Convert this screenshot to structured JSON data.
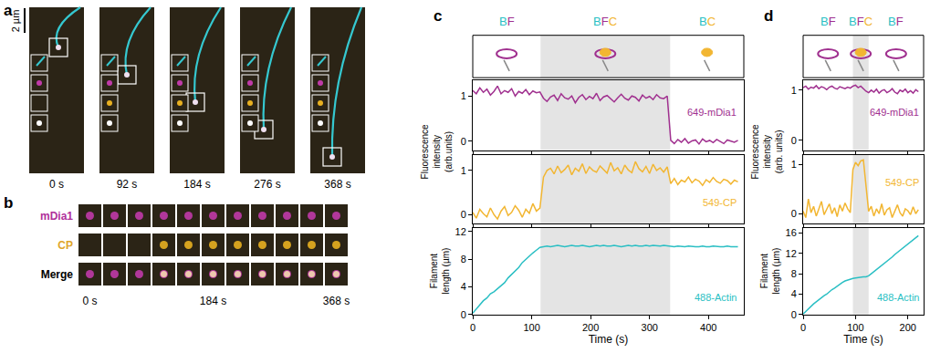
{
  "panel_a": {
    "label": "a",
    "scale_bar": "2 µm",
    "frames": [
      "0 s",
      "92 s",
      "184 s",
      "276 s",
      "368 s"
    ]
  },
  "panel_b": {
    "label": "b",
    "rows": [
      {
        "name": "mDia1",
        "color": "#b0309a"
      },
      {
        "name": "CP",
        "color": "#e0a52a"
      },
      {
        "name": "Merge",
        "color": "#000000"
      }
    ],
    "frames": 11,
    "time_labels": [
      {
        "frame": 0,
        "label": "0 s"
      },
      {
        "frame": 5,
        "label": "184 s"
      },
      {
        "frame": 10,
        "label": "368 s"
      }
    ]
  },
  "chart_data": [
    {
      "label": "c",
      "type": "line",
      "x_label": "Time (s)",
      "y_label": [
        "Fluorescence",
        "intensity",
        "(arb.units)"
      ],
      "xlim": [
        0,
        460
      ],
      "xticks": [
        0,
        100,
        200,
        300,
        400
      ],
      "state_colors": {
        "B": "#2bbfc4",
        "F": "#a0308f",
        "C": "#f2b632"
      },
      "states": [
        {
          "label": "BF",
          "start": 0,
          "end": 115
        },
        {
          "label": "BFC",
          "start": 115,
          "end": 335
        },
        {
          "label": "BC",
          "start": 335,
          "end": 460
        }
      ],
      "highlight": [
        115,
        335
      ],
      "x": [
        0,
        6,
        12,
        18,
        24,
        30,
        36,
        42,
        48,
        54,
        60,
        66,
        72,
        78,
        84,
        90,
        96,
        102,
        108,
        114,
        120,
        126,
        132,
        138,
        144,
        150,
        156,
        162,
        168,
        174,
        180,
        186,
        192,
        198,
        204,
        210,
        216,
        222,
        228,
        234,
        240,
        246,
        252,
        258,
        264,
        270,
        276,
        282,
        288,
        294,
        300,
        306,
        312,
        318,
        324,
        330,
        336,
        342,
        348,
        354,
        360,
        366,
        372,
        378,
        384,
        390,
        396,
        402,
        408,
        414,
        420,
        426,
        432,
        438,
        444,
        450
      ],
      "series": [
        {
          "name": "649-mDia1",
          "color": "#a0308f",
          "ylim": [
            -0.2,
            1.35
          ],
          "yticks": [
            0,
            1
          ],
          "tick_labels": "y",
          "values": [
            1.12,
            1.05,
            1.18,
            1.08,
            1.15,
            1.02,
            1.1,
            1.22,
            1.05,
            1.12,
            1.08,
            1.16,
            1.0,
            1.1,
            1.06,
            1.14,
            1.03,
            1.11,
            1.07,
            1.09,
            0.95,
            0.88,
            0.98,
            1.02,
            0.9,
            1.05,
            0.96,
            0.93,
            1.0,
            0.85,
            0.97,
            1.03,
            0.92,
            0.99,
            0.94,
            1.06,
            0.9,
            0.98,
            1.01,
            0.93,
            0.87,
            0.96,
            1.04,
            0.95,
            0.91,
            1.0,
            0.97,
            0.89,
            1.02,
            0.95,
            0.99,
            0.92,
            1.03,
            0.96,
            0.94,
            1.0,
            0.02,
            -0.05,
            0.04,
            -0.02,
            0.06,
            -0.04,
            0.01,
            0.03,
            -0.06,
            0.05,
            -0.01,
            0.02,
            -0.03,
            0.04,
            0.0,
            -0.05,
            0.03,
            0.01,
            -0.02,
            0.02
          ]
        },
        {
          "name": "549-CP",
          "color": "#f2b632",
          "ylim": [
            -0.2,
            1.35
          ],
          "yticks": [
            0,
            1
          ],
          "tick_labels": "y",
          "values": [
            0.05,
            -0.08,
            0.12,
            0.02,
            -0.05,
            0.15,
            0.0,
            -0.1,
            0.08,
            0.18,
            -0.02,
            0.05,
            0.2,
            0.1,
            -0.06,
            0.12,
            0.03,
            0.25,
            0.08,
            0.15,
            0.85,
            1.0,
            1.05,
            0.92,
            1.1,
            0.95,
            1.02,
            1.12,
            0.9,
            1.05,
            0.98,
            1.15,
            0.93,
            1.08,
            1.0,
            0.96,
            1.1,
            1.03,
            0.94,
            1.18,
            0.99,
            1.06,
            0.92,
            1.12,
            1.01,
            0.95,
            1.2,
            1.04,
            0.97,
            1.09,
            0.93,
            1.14,
            1.0,
            1.06,
            0.96,
            1.08,
            0.7,
            0.82,
            0.68,
            0.78,
            0.74,
            0.85,
            0.72,
            0.8,
            0.76,
            0.66,
            0.79,
            0.73,
            0.84,
            0.75,
            0.71,
            0.8,
            0.77,
            0.69,
            0.78,
            0.74
          ]
        },
        {
          "name": "488-Actin",
          "color": "#2bbfc4",
          "ylim": [
            0,
            12.5
          ],
          "yticks": [
            0,
            4,
            8,
            12
          ],
          "y_label": [
            "Filament",
            "length (µm)"
          ],
          "values": [
            0.2,
            0.8,
            1.5,
            2.0,
            2.4,
            3.0,
            3.3,
            3.7,
            4.2,
            4.6,
            5.3,
            5.8,
            6.2,
            6.8,
            7.5,
            8.0,
            8.4,
            8.9,
            9.3,
            9.7,
            9.8,
            9.9,
            9.8,
            9.9,
            10.0,
            9.9,
            9.8,
            9.9,
            10.0,
            9.9,
            9.9,
            10.0,
            9.9,
            9.8,
            9.9,
            10.0,
            9.9,
            10.0,
            9.9,
            9.9,
            10.0,
            9.9,
            9.8,
            9.9,
            10.0,
            9.9,
            10.0,
            9.9,
            9.9,
            10.0,
            9.9,
            10.0,
            9.9,
            9.9,
            10.0,
            9.9,
            9.8,
            9.8,
            9.9,
            9.8,
            9.8,
            9.9,
            9.8,
            9.8,
            9.8,
            9.9,
            9.8,
            9.8,
            9.9,
            9.8,
            9.8,
            9.8,
            9.9,
            9.8,
            9.8,
            9.8
          ]
        }
      ]
    },
    {
      "label": "d",
      "type": "line",
      "x_label": "Time (s)",
      "y_label": [
        "Fluorescence",
        "intensity",
        "(arb. units)"
      ],
      "xlim": [
        0,
        230
      ],
      "xticks": [
        0,
        100,
        200
      ],
      "state_colors": {
        "B": "#2bbfc4",
        "F": "#a0308f",
        "C": "#f2b632"
      },
      "states": [
        {
          "label": "BF",
          "start": 0,
          "end": 95
        },
        {
          "label": "BFC",
          "start": 95,
          "end": 125
        },
        {
          "label": "BF",
          "start": 125,
          "end": 230
        }
      ],
      "highlight": [
        95,
        125
      ],
      "x": [
        0,
        5,
        10,
        15,
        20,
        25,
        30,
        35,
        40,
        45,
        50,
        55,
        60,
        65,
        70,
        75,
        80,
        85,
        90,
        95,
        100,
        105,
        110,
        115,
        120,
        125,
        130,
        135,
        140,
        145,
        150,
        155,
        160,
        165,
        170,
        175,
        180,
        185,
        190,
        195,
        200,
        205,
        210,
        215,
        220
      ],
      "series": [
        {
          "name": "649-mDia1",
          "color": "#a0308f",
          "ylim": [
            -0.2,
            1.2
          ],
          "yticks": [
            0,
            1
          ],
          "tick_labels": "y",
          "values": [
            1.05,
            1.08,
            1.02,
            1.06,
            1.04,
            1.09,
            1.03,
            1.07,
            1.05,
            1.01,
            1.06,
            1.08,
            1.04,
            1.02,
            1.07,
            1.05,
            1.03,
            1.06,
            1.04,
            1.08,
            1.1,
            1.05,
            1.08,
            1.03,
            0.98,
            0.95,
            1.0,
            0.96,
            1.02,
            0.94,
            0.99,
            1.01,
            0.95,
            0.98,
            1.03,
            0.96,
            0.93,
            1.0,
            0.97,
            1.02,
            0.95,
            0.99,
            0.94,
            1.01,
            0.97
          ]
        },
        {
          "name": "549-CP",
          "color": "#f2b632",
          "ylim": [
            -0.2,
            1.2
          ],
          "yticks": [
            0,
            1
          ],
          "tick_labels": "y",
          "values": [
            0.05,
            -0.08,
            0.3,
            0.02,
            0.15,
            -0.05,
            0.1,
            0.25,
            -0.02,
            0.08,
            0.2,
            0.0,
            0.12,
            -0.06,
            0.18,
            0.05,
            0.22,
            0.1,
            0.02,
            0.9,
            1.05,
            0.98,
            1.08,
            1.1,
            0.5,
            0.05,
            0.15,
            -0.05,
            0.1,
            0.0,
            0.2,
            -0.03,
            0.08,
            0.12,
            -0.08,
            0.05,
            0.18,
            0.02,
            -0.05,
            0.1,
            0.06,
            -0.02,
            0.14,
            0.0,
            0.08
          ]
        },
        {
          "name": "488-Actin",
          "color": "#2bbfc4",
          "ylim": [
            0,
            17
          ],
          "yticks": [
            0,
            4,
            8,
            12,
            16
          ],
          "y_label": [
            "Filament",
            "length (µm)"
          ],
          "values": [
            0.1,
            0.6,
            1.2,
            1.6,
            2.1,
            2.5,
            2.9,
            3.4,
            3.7,
            4.0,
            4.5,
            4.9,
            5.2,
            5.6,
            6.0,
            6.3,
            6.6,
            6.8,
            7.0,
            7.1,
            7.2,
            7.3,
            7.3,
            7.4,
            7.4,
            7.6,
            8.0,
            8.4,
            8.9,
            9.3,
            9.6,
            10.0,
            10.4,
            10.9,
            11.3,
            11.8,
            12.2,
            12.6,
            13.0,
            13.4,
            13.9,
            14.3,
            14.7,
            15.1,
            15.5
          ]
        }
      ]
    }
  ]
}
